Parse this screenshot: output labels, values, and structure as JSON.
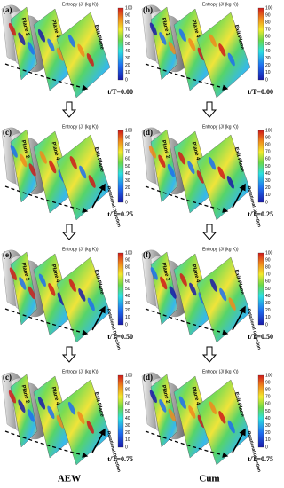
{
  "colorbar": {
    "title": "Entropy (J/ (kg K))",
    "ticks": [
      100,
      90,
      80,
      70,
      60,
      50,
      40,
      30,
      20,
      10,
      0
    ]
  },
  "panels": [
    {
      "label": "(a)",
      "planes": [
        "Plane 2",
        "Plane 4",
        "Exit Plane"
      ],
      "time": "t/T=0.00"
    },
    {
      "label": "(b)",
      "planes": [
        "Plane 2",
        "Plane 4",
        "Exit Plane"
      ],
      "time": "t/T=0.00"
    },
    {
      "label": "(c)",
      "planes": [
        "Plane 2",
        "Plane 4",
        "Exit Plane"
      ],
      "time": "t/T=0.25",
      "direction": "Rotational Direction"
    },
    {
      "label": "(d)",
      "planes": [
        "Plane 2",
        "Plane 4",
        "Exit Plane"
      ],
      "time": "t/T=0.25",
      "direction": "Rotational Direction"
    },
    {
      "label": "(e)",
      "planes": [
        "Plane 2",
        "Plane 4",
        "Exit Plane"
      ],
      "time": "t/T=0.50",
      "direction": "Rotational Direction"
    },
    {
      "label": "(f)",
      "planes": [
        "Plane 2",
        "Plane 4",
        "Exit Plane"
      ],
      "time": "t/T=0.50",
      "direction": "Rotational Direction"
    },
    {
      "label": "(c)",
      "planes": [
        "Plane 2",
        "Plane 4",
        "Exit Plane"
      ],
      "time": "t/T=0.75",
      "direction": "Rotational Direction"
    },
    {
      "label": "(d)",
      "planes": [
        "Plane 2",
        "Plane 4",
        "Exit Plane"
      ],
      "time": "t/T=0.75",
      "direction": "Rotational Direction"
    }
  ],
  "columns": [
    "AEW",
    "Cum"
  ]
}
